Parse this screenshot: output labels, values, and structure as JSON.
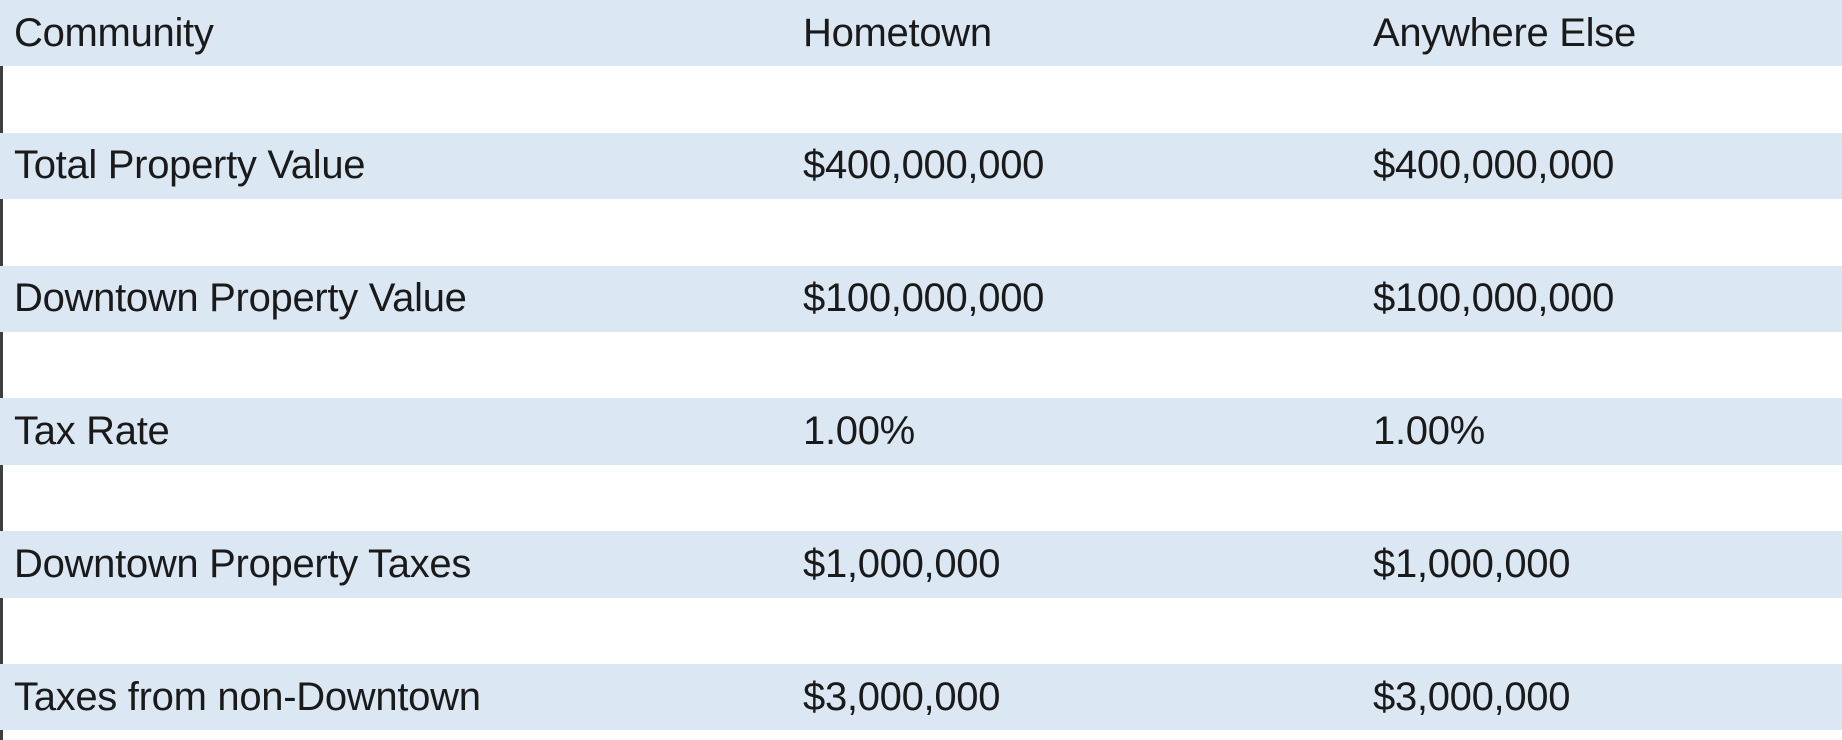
{
  "table": {
    "columns": [
      "Community",
      "Hometown",
      "Anywhere Else"
    ],
    "rows": [
      {
        "label": "Total Property Value",
        "hometown": "$400,000,000",
        "anywhere": "$400,000,000"
      },
      {
        "label": "Downtown Property Value",
        "hometown": "$100,000,000",
        "anywhere": "$100,000,000"
      },
      {
        "label": "Tax Rate",
        "hometown": "1.00%",
        "anywhere": "1.00%"
      },
      {
        "label": "Downtown Property Taxes",
        "hometown": "$1,000,000",
        "anywhere": "$1,000,000"
      },
      {
        "label": "Taxes from non-Downtown",
        "hometown": "$3,000,000",
        "anywhere": "$3,000,000"
      }
    ],
    "colors": {
      "band_blue": "#dbe7f3",
      "tick": "#3f3f3f",
      "text": "#1a1a1a"
    }
  }
}
